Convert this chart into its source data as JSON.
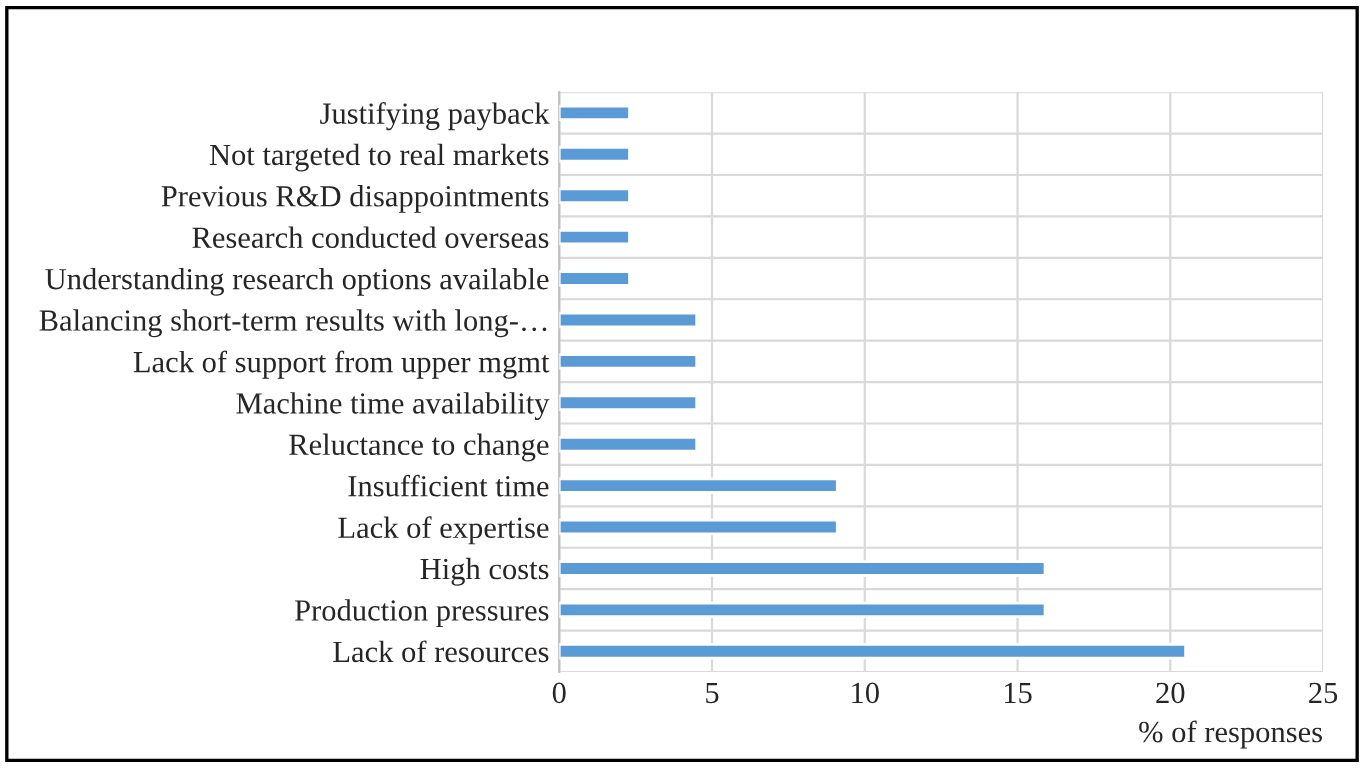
{
  "chart_data": {
    "type": "bar",
    "orientation": "horizontal",
    "xlabel": "% of responses",
    "categories": [
      "Justifying payback",
      "Not targeted to real markets",
      "Previous R&D disappointments",
      "Research conducted overseas",
      "Understanding research options available",
      "Balancing short-term results with long-…",
      "Lack of support from upper mgmt",
      "Machine time availability",
      "Reluctance to change",
      "Insufficient time",
      "Lack of expertise",
      "High costs",
      "Production pressures",
      "Lack of resources"
    ],
    "values": [
      2.3,
      2.3,
      2.3,
      2.3,
      2.3,
      4.5,
      4.5,
      4.5,
      4.5,
      9.1,
      9.1,
      15.9,
      15.9,
      20.5
    ],
    "color": "#5b9bd5",
    "xlim": [
      0,
      25
    ],
    "xticks": [
      0,
      5,
      10,
      15,
      20,
      25
    ],
    "grid": true
  }
}
